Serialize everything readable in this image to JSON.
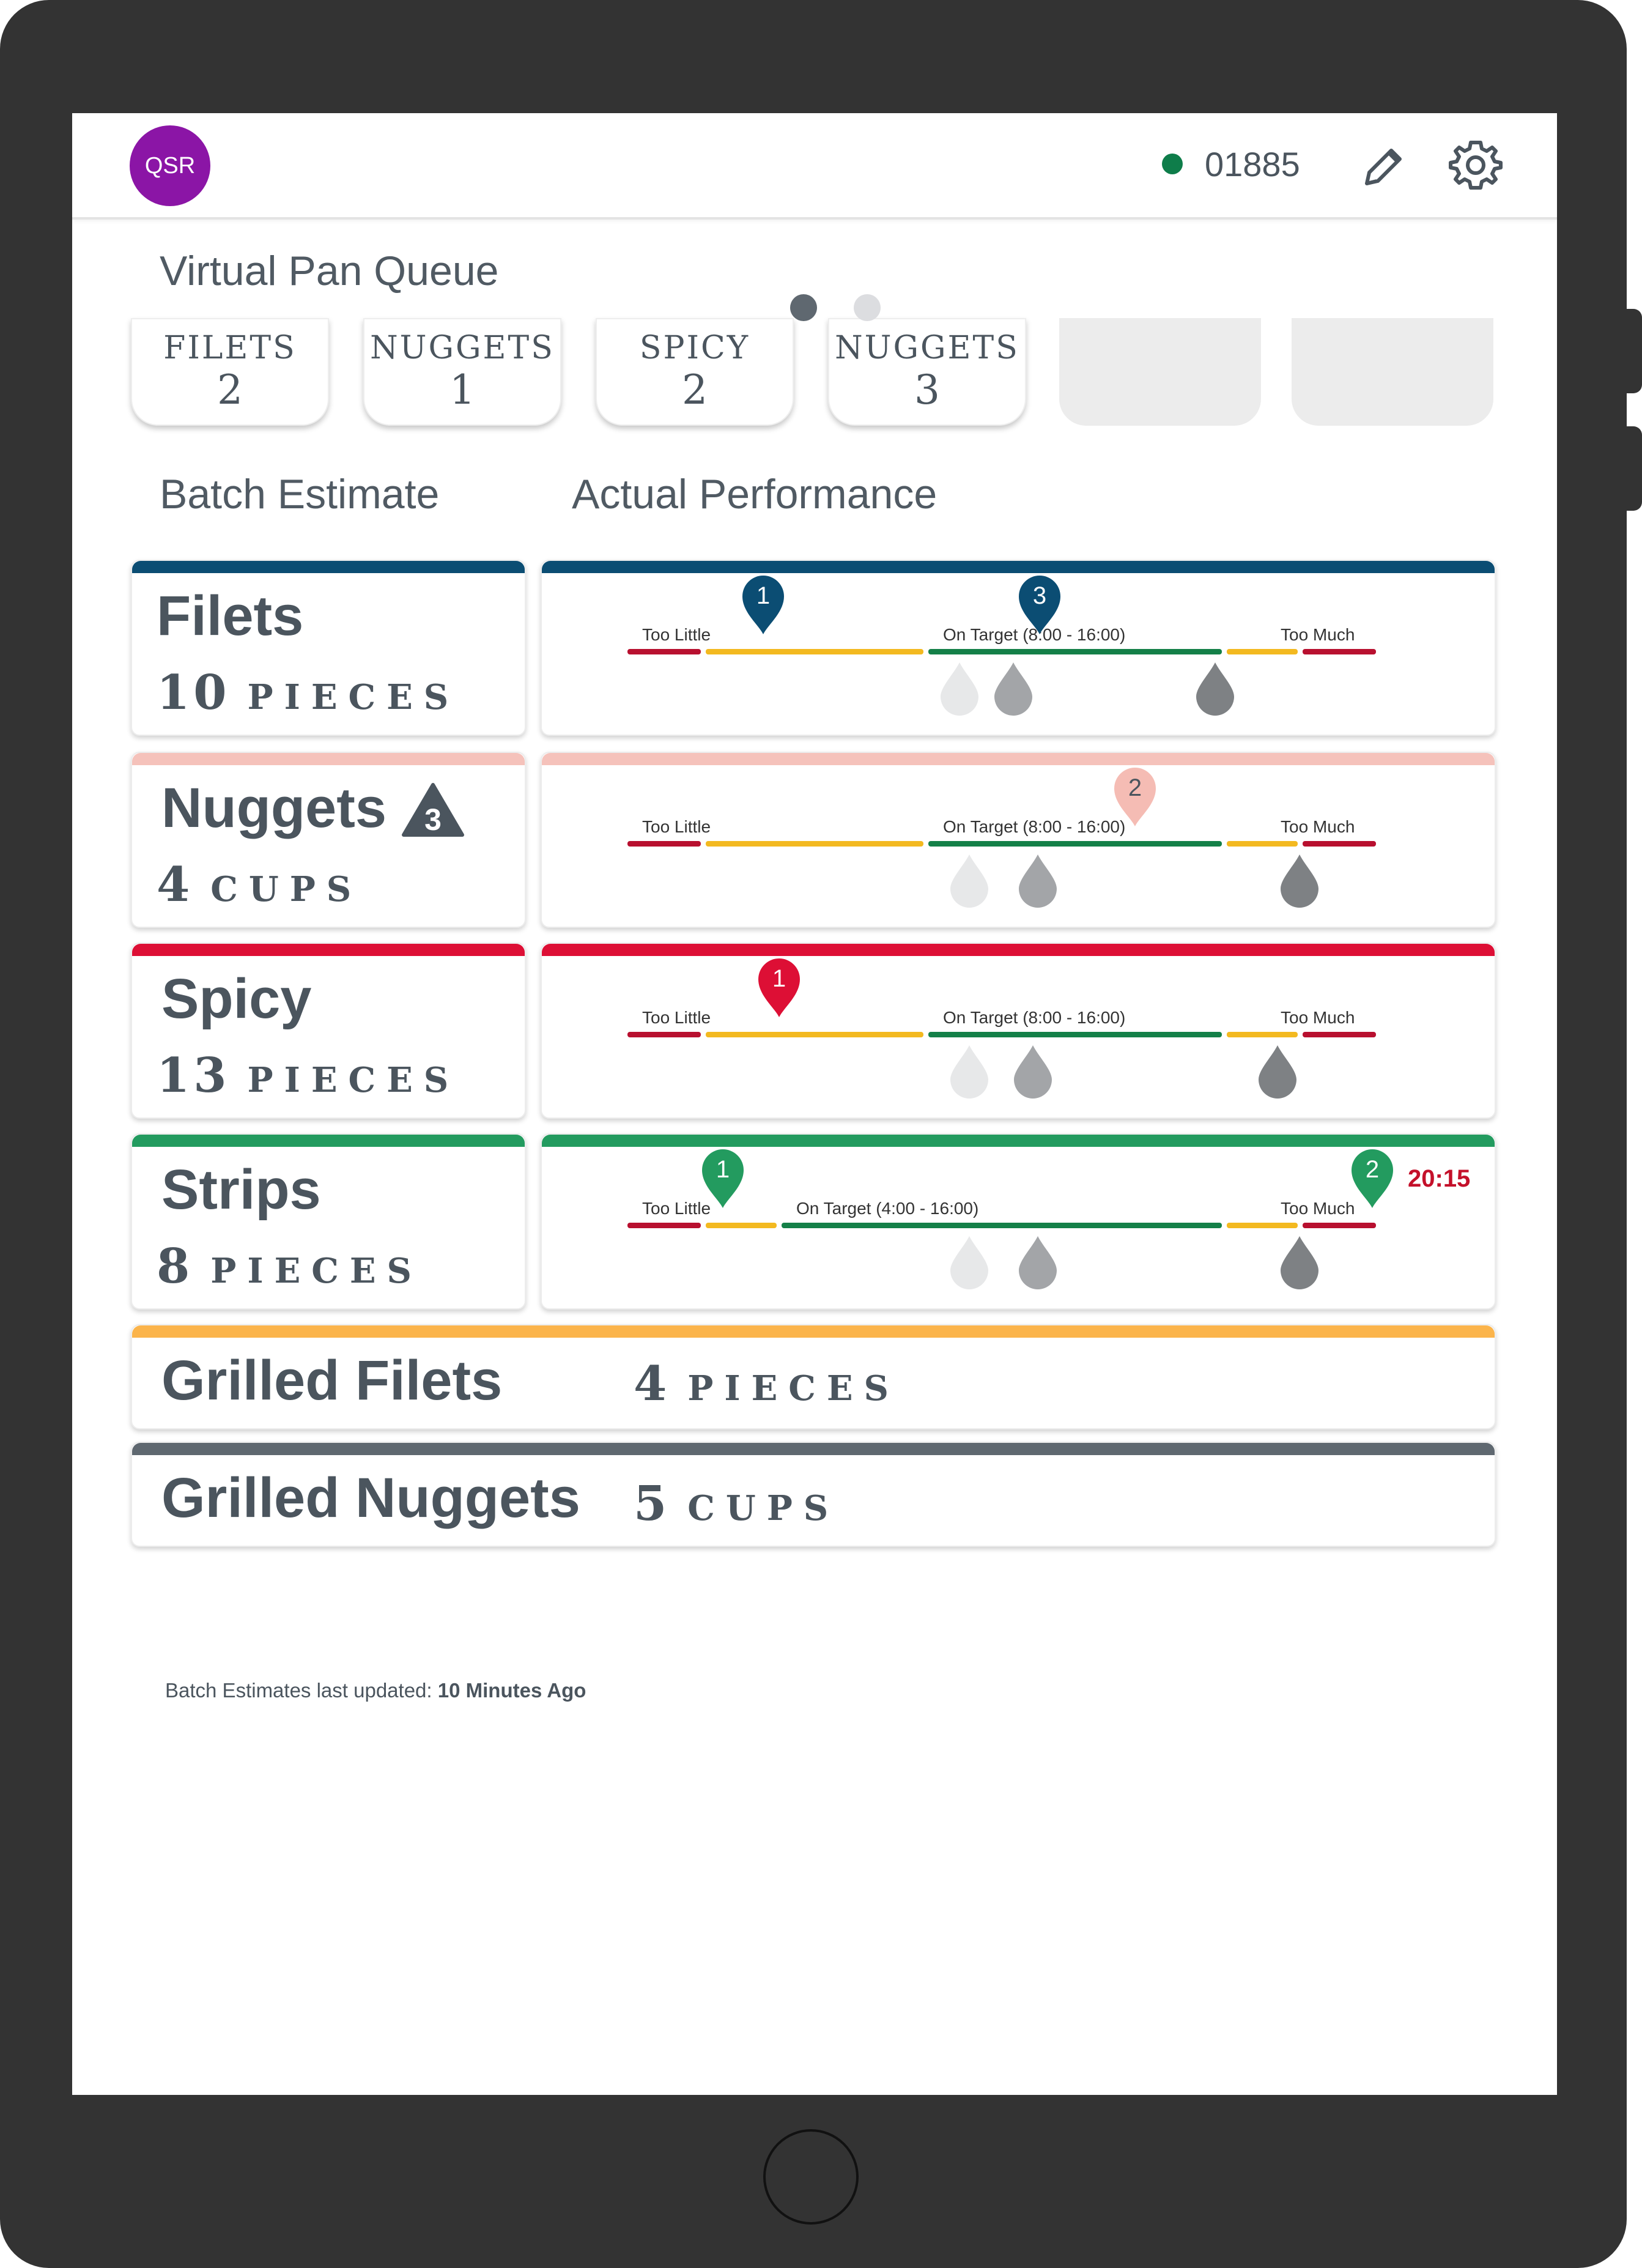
{
  "header": {
    "avatar_text": "QSR",
    "store_id": "01885",
    "status_color": "#0e7d4a",
    "icons": [
      "edit-pencil-icon",
      "settings-gear-icon"
    ]
  },
  "pan_queue": {
    "title": "Virtual Pan Queue",
    "cards": [
      {
        "label": "FILETS",
        "count": "2"
      },
      {
        "label": "NUGGETS",
        "count": "1"
      },
      {
        "label": "SPICY",
        "count": "2"
      },
      {
        "label": "NUGGETS",
        "count": "3"
      }
    ],
    "empty_slots": 2
  },
  "columns": {
    "batch_estimate": "Batch Estimate",
    "actual_performance": "Actual Performance"
  },
  "items": [
    {
      "name": "Filets",
      "qty": "10",
      "unit": "PIECES",
      "color": "#0b4d73",
      "performance": {
        "too_little": "Too Little",
        "on_target": "On Target (8:00 - 16:00)",
        "too_much": "Too Much",
        "markers": [
          "1",
          "3"
        ],
        "drops": [
          "light",
          "medium",
          "dark"
        ]
      }
    },
    {
      "name": "Nuggets",
      "qty": "4",
      "unit": "CUPS",
      "color": "#f5c2bb",
      "alert_badge": "3",
      "performance": {
        "too_little": "Too Little",
        "on_target": "On Target (8:00 - 16:00)",
        "too_much": "Too Much",
        "markers": [
          "2"
        ],
        "drops": [
          "light",
          "medium",
          "dark"
        ]
      }
    },
    {
      "name": "Spicy",
      "qty": "13",
      "unit": "PIECES",
      "color": "#dd0f35",
      "performance": {
        "too_little": "Too Little",
        "on_target": "On Target (8:00 - 16:00)",
        "too_much": "Too Much",
        "markers": [
          "1"
        ],
        "drops": [
          "light",
          "medium",
          "dark"
        ]
      }
    },
    {
      "name": "Strips",
      "qty": "8",
      "unit": "PIECES",
      "color": "#239b5f",
      "performance": {
        "too_little": "Too Little",
        "on_target": "On Target (4:00 - 16:00)",
        "too_much": "Too Much",
        "markers": [
          "1",
          "2"
        ],
        "timer": "20:15",
        "drops": [
          "light",
          "medium",
          "dark"
        ]
      }
    }
  ],
  "grilled": [
    {
      "name": "Grilled Filets",
      "qty": "4",
      "unit": "PIECES",
      "color": "#fbb44b"
    },
    {
      "name": "Grilled Nuggets",
      "qty": "5",
      "unit": "CUPS",
      "color": "#5f6870"
    }
  ],
  "footer": {
    "label": "Batch Estimates last updated:",
    "value": "10 Minutes Ago"
  },
  "pagination": {
    "pages": 2,
    "current": 1
  }
}
